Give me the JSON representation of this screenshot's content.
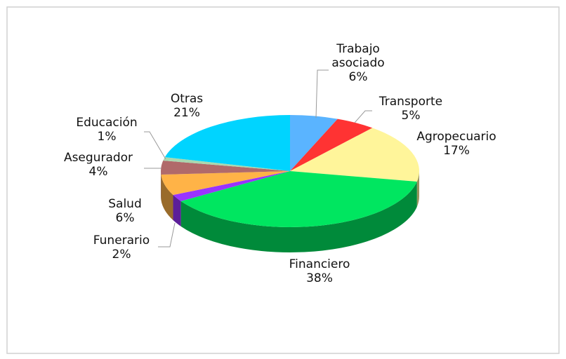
{
  "chart_data": {
    "type": "pie",
    "categories": [
      "Trabajo asociado",
      "Transporte",
      "Agropecuario",
      "Financiero",
      "Funerario",
      "Salud",
      "Asegurador",
      "Educación",
      "Otras"
    ],
    "values": [
      6,
      5,
      17,
      38,
      2,
      6,
      4,
      1,
      21
    ],
    "value_labels": [
      "6%",
      "5%",
      "17%",
      "38%",
      "2%",
      "6%",
      "4%",
      "1%",
      "21%"
    ],
    "colors": [
      "#5ab4ff",
      "#ff3333",
      "#fff59a",
      "#00e660",
      "#9933ff",
      "#ffb347",
      "#b06a6a",
      "#a8d8b0",
      "#00d4ff"
    ]
  }
}
